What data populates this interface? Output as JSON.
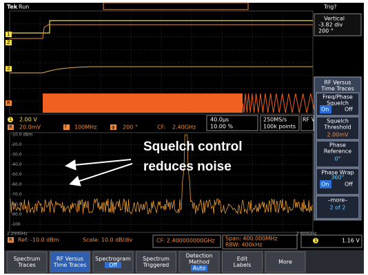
{
  "top_bar": {
    "brand": "Tek",
    "state": "Run",
    "trigger": "Trig?"
  },
  "vertical_readout": {
    "title": "Vertical",
    "offset": "-3.82 div",
    "phase": "200 °"
  },
  "waveform_markers": [
    "1",
    "Z",
    "Z",
    "R"
  ],
  "channel_status": {
    "ch1_label": "1",
    "ch1_scale": "2.00 V",
    "ref_label": "R",
    "ref_scale": "20.0mV",
    "freq_icon": "f",
    "freq": "100MHz",
    "phase_icon": "φ",
    "phase": "200 °",
    "cf_label": "CF:",
    "cf": "2.40GHz"
  },
  "acquisition": {
    "timebase": "40.0µs",
    "trigger_position": "10.00 %",
    "sample_rate": "250MS/s",
    "record_length": "100k points",
    "rf_tab": "RF V"
  },
  "side_menu": {
    "title": [
      "RF Versus",
      "Time Traces"
    ],
    "items": [
      {
        "label": [
          "Freq/Phase",
          "Squelch"
        ],
        "on": "On",
        "off": "Off"
      },
      {
        "label": [
          "Squelch",
          "Threshold"
        ],
        "value": "2.00mV"
      },
      {
        "label": [
          "Phase",
          "Reference"
        ],
        "value": "0°"
      },
      {
        "label": [
          "Phase Wrap"
        ],
        "value": "360°",
        "on": "On",
        "off": "Off"
      },
      {
        "label": [
          "–more–"
        ],
        "value": "2 of 2"
      }
    ]
  },
  "spectrum": {
    "y_labels": [
      "-10.0 dBm",
      "-20.0",
      "-30.0",
      "-40.0",
      "-50.0",
      "-60.0",
      "-70.0",
      "-80.0",
      "-90.0",
      "-100"
    ],
    "x_start": "2.200GHz",
    "x_end": "2.600GHz"
  },
  "annotation": [
    "Squelch control",
    "reduces noise"
  ],
  "spectrum_status": {
    "ref_label": "R",
    "ref": "Ref: -10.0 dBm",
    "scale": "Scale: 10.0 dB/div",
    "cf": "CF: 2.400000000GHz",
    "span": "Span:  400.000MHz",
    "rbw": "RBW:  400kHz",
    "trig_ch": "1",
    "trig_level": "1.16 V"
  },
  "bottom_menu": [
    {
      "lines": [
        "Spectrum",
        "Traces"
      ]
    },
    {
      "lines": [
        "RF Versus",
        "Time Traces"
      ]
    },
    {
      "lines": [
        "Spectrogram"
      ],
      "value": "Off"
    },
    {
      "lines": [
        "Spectrum",
        "Triggered"
      ]
    },
    {
      "lines": [
        "Detection",
        "Method"
      ],
      "value": "Auto"
    },
    {
      "lines": [
        "Edit",
        "Labels"
      ]
    },
    {
      "lines": [
        "More"
      ]
    }
  ]
}
